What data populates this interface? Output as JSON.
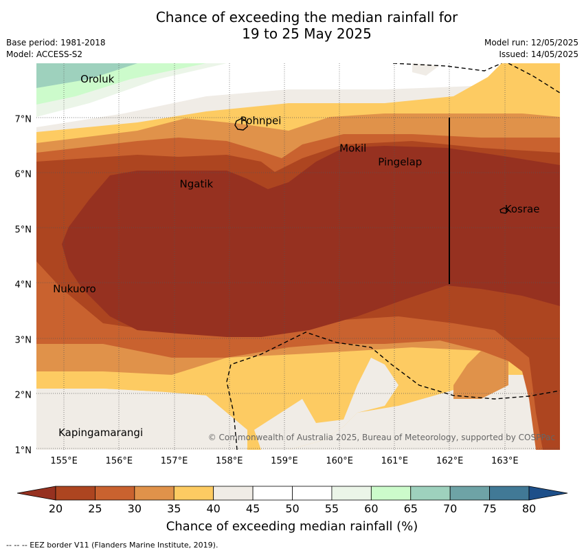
{
  "title": {
    "line1": "Chance of exceeding the median rainfall for",
    "line2": "19 to 25 May 2025"
  },
  "meta": {
    "base_period": "Base period: 1981-2018",
    "model": "Model: ACCESS-S2",
    "model_run": "Model run: 12/05/2025",
    "issued": "Issued: 14/05/2025"
  },
  "map": {
    "lon_range": [
      154.5,
      164.0
    ],
    "lat_range": [
      1.0,
      8.0
    ],
    "lon_ticks": [
      "155°E",
      "156°E",
      "157°E",
      "158°E",
      "159°E",
      "160°E",
      "161°E",
      "162°E",
      "163°E"
    ],
    "lat_ticks": [
      "1°N",
      "2°N",
      "3°N",
      "4°N",
      "5°N",
      "6°N",
      "7°N"
    ],
    "places": [
      {
        "name": "Oroluk",
        "lon": 155.3,
        "lat": 7.65
      },
      {
        "name": "Pohnpei",
        "lon": 158.2,
        "lat": 6.9
      },
      {
        "name": "Mokil",
        "lon": 160.0,
        "lat": 6.4
      },
      {
        "name": "Pingelap",
        "lon": 160.7,
        "lat": 6.15
      },
      {
        "name": "Ngatik",
        "lon": 157.1,
        "lat": 5.75
      },
      {
        "name": "Kosrae",
        "lon": 163.0,
        "lat": 5.3
      },
      {
        "name": "Nukuoro",
        "lon": 154.8,
        "lat": 3.85
      },
      {
        "name": "Kapingamarangi",
        "lon": 154.9,
        "lat": 1.25
      }
    ],
    "copyright": "© Commonwealth of Australia 2025, Bureau of Meteorology, supported by COSPPac"
  },
  "colorbar": {
    "ticks": [
      "20",
      "25",
      "30",
      "35",
      "40",
      "45",
      "50",
      "55",
      "60",
      "65",
      "70",
      "75",
      "80"
    ],
    "colors": [
      "#ad4520",
      "#c9622f",
      "#e0924a",
      "#fdcb62",
      "#f0ece6",
      "#ffffff",
      "#ffffff",
      "#ebf5e8",
      "#ccfbcb",
      "#9ed1bd",
      "#6ea3a6",
      "#417996"
    ],
    "under_color": "#963120",
    "over_color": "#1d4f89",
    "label": "Chance of exceeding median rainfall (%)"
  },
  "footer": "--  --  -- EEZ border V11 (Flanders Marine Institute, 2019)."
}
